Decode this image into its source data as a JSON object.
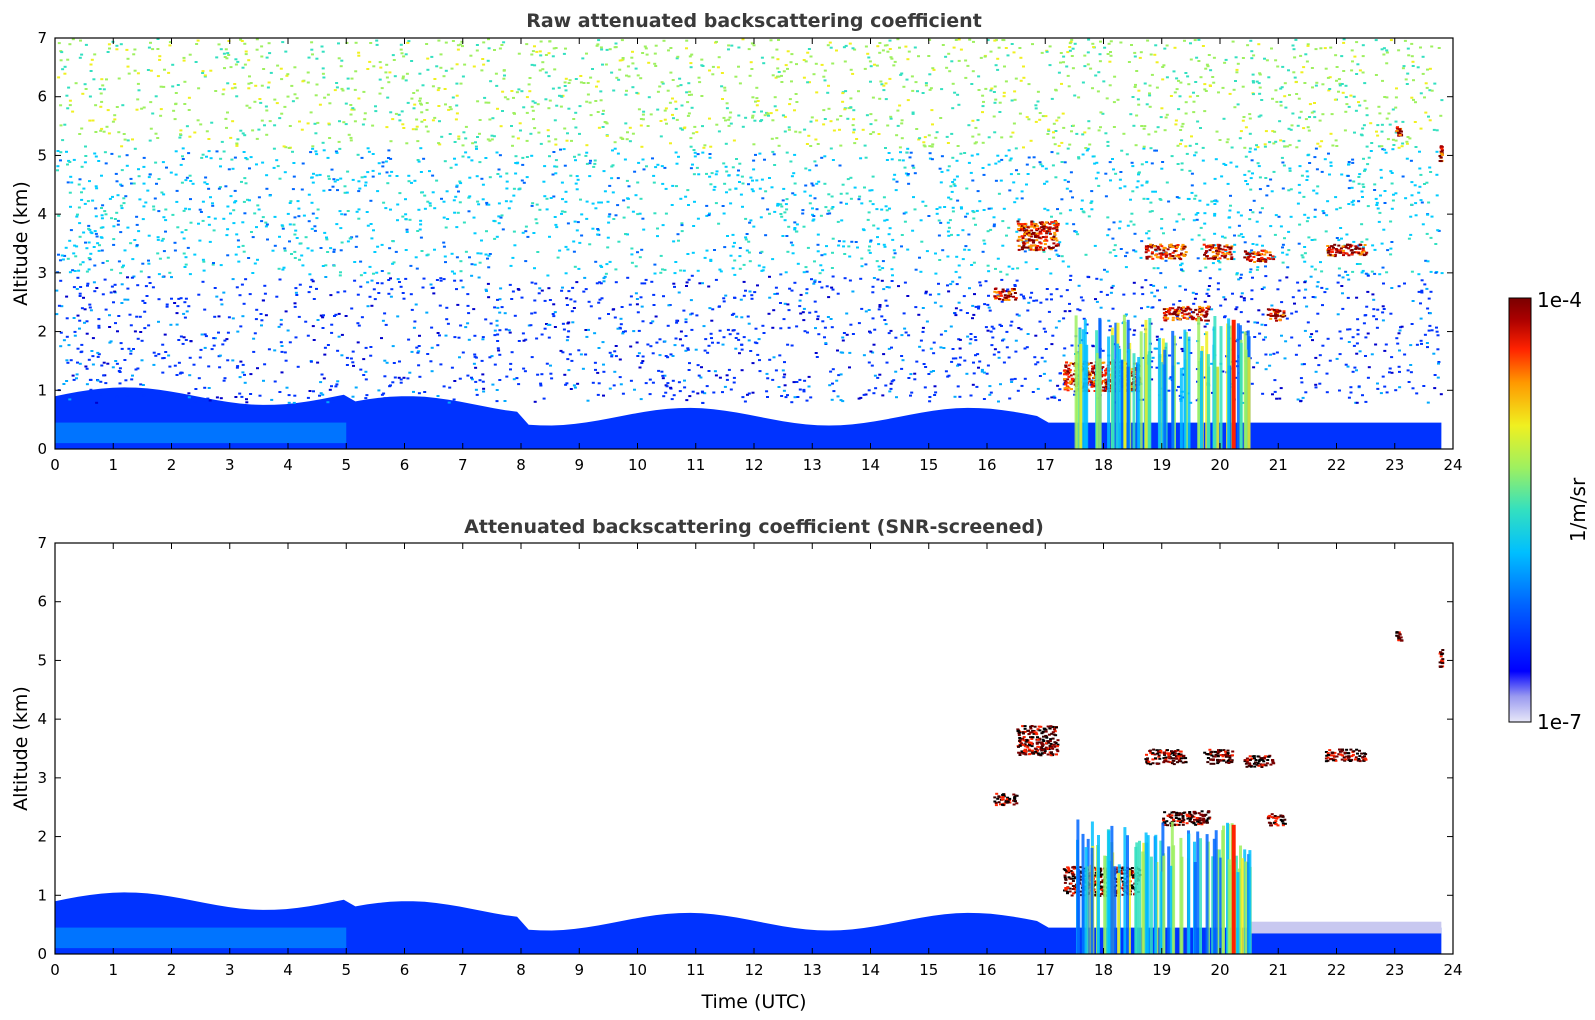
{
  "chart_data": [
    {
      "type": "heatmap",
      "title": "Raw attenuated backscattering coefficient",
      "ylabel": "Altitude (km)",
      "xlabel": "",
      "xlim": [
        0,
        24
      ],
      "ylim": [
        0,
        7
      ],
      "x_ticks": [
        "0",
        "1",
        "2",
        "3",
        "4",
        "5",
        "6",
        "7",
        "8",
        "9",
        "10",
        "11",
        "12",
        "13",
        "14",
        "15",
        "16",
        "17",
        "18",
        "19",
        "20",
        "21",
        "22",
        "23",
        "24"
      ],
      "y_ticks": [
        "0",
        "1",
        "2",
        "3",
        "4",
        "5",
        "6",
        "7"
      ],
      "screened": false,
      "features": [
        {
          "name": "boundary layer",
          "x": [
            0,
            23.8
          ],
          "y": [
            0,
            0.9
          ],
          "level": "low"
        },
        {
          "name": "noise",
          "x": [
            0,
            23.8
          ],
          "y": [
            0.8,
            7
          ],
          "level": "noise"
        },
        {
          "name": "cloud",
          "x": [
            16.5,
            17.2
          ],
          "y": [
            3.4,
            3.9
          ],
          "level": "high"
        },
        {
          "name": "cloud",
          "x": [
            16.1,
            16.5
          ],
          "y": [
            2.55,
            2.75
          ],
          "level": "high"
        },
        {
          "name": "cloud",
          "x": [
            18.7,
            19.4
          ],
          "y": [
            3.25,
            3.5
          ],
          "level": "high"
        },
        {
          "name": "cloud",
          "x": [
            19.7,
            20.2
          ],
          "y": [
            3.25,
            3.5
          ],
          "level": "high"
        },
        {
          "name": "cloud",
          "x": [
            20.4,
            20.9
          ],
          "y": [
            3.2,
            3.4
          ],
          "level": "high"
        },
        {
          "name": "cloud",
          "x": [
            21.8,
            22.5
          ],
          "y": [
            3.3,
            3.5
          ],
          "level": "high"
        },
        {
          "name": "cloud",
          "x": [
            19.0,
            19.8
          ],
          "y": [
            2.2,
            2.45
          ],
          "level": "high"
        },
        {
          "name": "cloud",
          "x": [
            20.8,
            21.1
          ],
          "y": [
            2.2,
            2.4
          ],
          "level": "high"
        },
        {
          "name": "cloud",
          "x": [
            17.3,
            18.6
          ],
          "y": [
            1.0,
            1.5
          ],
          "level": "high"
        },
        {
          "name": "precipitation",
          "x": [
            17.5,
            20.5
          ],
          "y": [
            0,
            2.3
          ],
          "level": "mid"
        },
        {
          "name": "cloud",
          "x": [
            23.0,
            23.1
          ],
          "y": [
            5.35,
            5.5
          ],
          "level": "high"
        },
        {
          "name": "cloud",
          "x": [
            23.75,
            23.8
          ],
          "y": [
            4.9,
            5.2
          ],
          "level": "high"
        }
      ]
    },
    {
      "type": "heatmap",
      "title": "Attenuated backscattering coefficient (SNR-screened)",
      "ylabel": "Altitude (km)",
      "xlabel": "Time (UTC)",
      "xlim": [
        0,
        24
      ],
      "ylim": [
        0,
        7
      ],
      "x_ticks": [
        "0",
        "1",
        "2",
        "3",
        "4",
        "5",
        "6",
        "7",
        "8",
        "9",
        "10",
        "11",
        "12",
        "13",
        "14",
        "15",
        "16",
        "17",
        "18",
        "19",
        "20",
        "21",
        "22",
        "23",
        "24"
      ],
      "y_ticks": [
        "0",
        "1",
        "2",
        "3",
        "4",
        "5",
        "6",
        "7"
      ],
      "screened": true,
      "features": [
        {
          "name": "boundary layer",
          "x": [
            0,
            23.8
          ],
          "y": [
            0,
            0.9
          ],
          "level": "low"
        },
        {
          "name": "cloud",
          "x": [
            16.5,
            17.2
          ],
          "y": [
            3.4,
            3.9
          ],
          "level": "high"
        },
        {
          "name": "cloud",
          "x": [
            16.1,
            16.5
          ],
          "y": [
            2.55,
            2.75
          ],
          "level": "high"
        },
        {
          "name": "cloud",
          "x": [
            18.7,
            19.4
          ],
          "y": [
            3.25,
            3.5
          ],
          "level": "high"
        },
        {
          "name": "cloud",
          "x": [
            19.7,
            20.2
          ],
          "y": [
            3.25,
            3.5
          ],
          "level": "high"
        },
        {
          "name": "cloud",
          "x": [
            20.4,
            20.9
          ],
          "y": [
            3.2,
            3.4
          ],
          "level": "high"
        },
        {
          "name": "cloud",
          "x": [
            21.8,
            22.5
          ],
          "y": [
            3.3,
            3.5
          ],
          "level": "high"
        },
        {
          "name": "cloud",
          "x": [
            19.0,
            19.8
          ],
          "y": [
            2.2,
            2.45
          ],
          "level": "high"
        },
        {
          "name": "cloud",
          "x": [
            20.8,
            21.1
          ],
          "y": [
            2.2,
            2.4
          ],
          "level": "high"
        },
        {
          "name": "cloud",
          "x": [
            17.3,
            18.6
          ],
          "y": [
            1.0,
            1.5
          ],
          "level": "high"
        },
        {
          "name": "precipitation",
          "x": [
            17.5,
            20.5
          ],
          "y": [
            0,
            2.3
          ],
          "level": "mid"
        },
        {
          "name": "cloud",
          "x": [
            23.0,
            23.1
          ],
          "y": [
            5.35,
            5.5
          ],
          "level": "high"
        },
        {
          "name": "cloud",
          "x": [
            23.75,
            23.8
          ],
          "y": [
            4.9,
            5.2
          ],
          "level": "high"
        }
      ]
    }
  ],
  "colorbar": {
    "label": "1/m/sr",
    "min_label": "1e-7",
    "max_label": "1e-4",
    "scale": "log",
    "colors": [
      "#e8e8f8",
      "#9a9af0",
      "#0000ff",
      "#0066ff",
      "#00bfff",
      "#33e0c0",
      "#9ef060",
      "#f0f020",
      "#ff9900",
      "#ff2200",
      "#aa0000",
      "#7a0000"
    ]
  }
}
